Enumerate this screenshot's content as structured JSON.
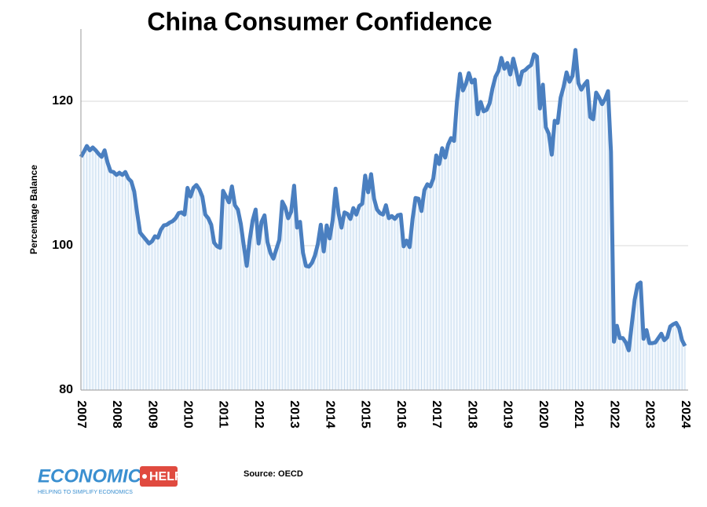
{
  "chart_data": {
    "type": "line",
    "title": "China Consumer Confidence",
    "y_label": "Percentage Balance",
    "color": "#4a7fc0",
    "area_color": "#c8dcef",
    "grid": true,
    "ylim": [
      80,
      130
    ],
    "yticks": [
      80,
      100,
      120
    ],
    "categories": [
      "2007",
      null,
      null,
      null,
      null,
      null,
      null,
      null,
      null,
      null,
      null,
      null,
      "2008",
      null,
      null,
      null,
      null,
      null,
      null,
      null,
      null,
      null,
      null,
      null,
      "2009",
      null,
      null,
      null,
      null,
      null,
      null,
      null,
      null,
      null,
      null,
      null,
      "2010",
      null,
      null,
      null,
      null,
      null,
      null,
      null,
      null,
      null,
      null,
      null,
      "2011",
      null,
      null,
      null,
      null,
      null,
      null,
      null,
      null,
      null,
      null,
      null,
      "2012",
      null,
      null,
      null,
      null,
      null,
      null,
      null,
      null,
      null,
      null,
      null,
      "2013",
      null,
      null,
      null,
      null,
      null,
      null,
      null,
      null,
      null,
      null,
      null,
      "2014",
      null,
      null,
      null,
      null,
      null,
      null,
      null,
      null,
      null,
      null,
      null,
      "2015",
      null,
      null,
      null,
      null,
      null,
      null,
      null,
      null,
      null,
      null,
      null,
      "2016",
      null,
      null,
      null,
      null,
      null,
      null,
      null,
      null,
      null,
      null,
      null,
      "2017",
      null,
      null,
      null,
      null,
      null,
      null,
      null,
      null,
      null,
      null,
      null,
      "2018",
      null,
      null,
      null,
      null,
      null,
      null,
      null,
      null,
      null,
      null,
      null,
      "2019",
      null,
      null,
      null,
      null,
      null,
      null,
      null,
      null,
      null,
      null,
      null,
      "2020",
      null,
      null,
      null,
      null,
      null,
      null,
      null,
      null,
      null,
      null,
      null,
      "2021",
      null,
      null,
      null,
      null,
      null,
      null,
      null,
      null,
      null,
      null,
      null,
      "2022",
      null,
      null,
      null,
      null,
      null,
      null,
      null,
      null,
      null,
      null,
      null,
      "2023",
      null,
      null,
      null,
      null,
      null,
      null,
      null,
      null,
      null,
      null,
      null,
      "2024"
    ],
    "values": [
      112.3,
      113,
      113.8,
      113.2,
      113.6,
      113.2,
      112.7,
      112.3,
      113.2,
      111.5,
      110.3,
      110.2,
      109.8,
      110.1,
      109.8,
      110.2,
      109.3,
      108.9,
      107.5,
      104.5,
      101.8,
      101.3,
      100.8,
      100.3,
      100.6,
      101.3,
      101.1,
      102.2,
      102.8,
      102.9,
      103.2,
      103.4,
      103.8,
      104.5,
      104.6,
      104.3,
      108,
      106.8,
      108,
      108.4,
      107.8,
      106.8,
      104.3,
      103.8,
      102.9,
      100.4,
      99.9,
      99.7,
      107.6,
      106.8,
      106,
      108.2,
      105.6,
      105,
      103,
      100,
      97.2,
      100.8,
      103.5,
      105,
      100.3,
      103.3,
      104.2,
      100.5,
      99,
      98.2,
      99.5,
      100.8,
      106.1,
      105.3,
      103.8,
      104.7,
      108.3,
      102.5,
      103.3,
      99,
      97.2,
      97.1,
      97.6,
      98.6,
      100.2,
      102.9,
      99.2,
      102.8,
      101,
      103.5,
      107.9,
      104.5,
      102.5,
      104.6,
      104.4,
      103.7,
      105.2,
      104.3,
      105.5,
      105.8,
      109.7,
      107.4,
      109.9,
      106.5,
      105,
      104.5,
      104.3,
      105.6,
      103.8,
      104.1,
      103.7,
      104.2,
      104.3,
      99.9,
      100.7,
      99.8,
      103.7,
      106.6,
      106.5,
      104.8,
      107.7,
      108.5,
      108.2,
      109.3,
      112.5,
      111.3,
      113.5,
      112.2,
      114,
      114.9,
      114.5,
      120,
      123.8,
      121.5,
      122.4,
      123.9,
      122.6,
      123,
      118.2,
      119.9,
      118.6,
      118.8,
      119.7,
      121.8,
      123.4,
      124.2,
      126,
      124.5,
      125.3,
      123.7,
      125.9,
      124.2,
      122.3,
      124.1,
      124.3,
      124.7,
      125,
      126.5,
      126.2,
      119,
      122.3,
      116.4,
      115.5,
      112.6,
      117.3,
      117,
      120.5,
      122,
      124,
      122.7,
      123.5,
      127.1,
      122.5,
      121.6,
      122.3,
      122.8,
      117.8,
      117.5,
      121.2,
      120.5,
      119.6,
      120.3,
      121.4,
      113,
      86.7,
      88.9,
      87.2,
      87.2,
      86.6,
      85.5,
      89,
      92.5,
      94.6,
      94.9,
      87.1,
      88.3,
      86.5,
      86.5,
      86.6,
      87.2,
      87.8,
      86.9,
      87.3,
      88.8,
      89.1,
      89.3,
      88.6,
      86.9,
      86.1
    ]
  },
  "footer": {
    "source": "Source: OECD",
    "logo_text": "ECONOMICS",
    "logo_badge": "HELP",
    "logo_tagline": "HELPING TO SIMPLIFY ECONOMICS"
  }
}
